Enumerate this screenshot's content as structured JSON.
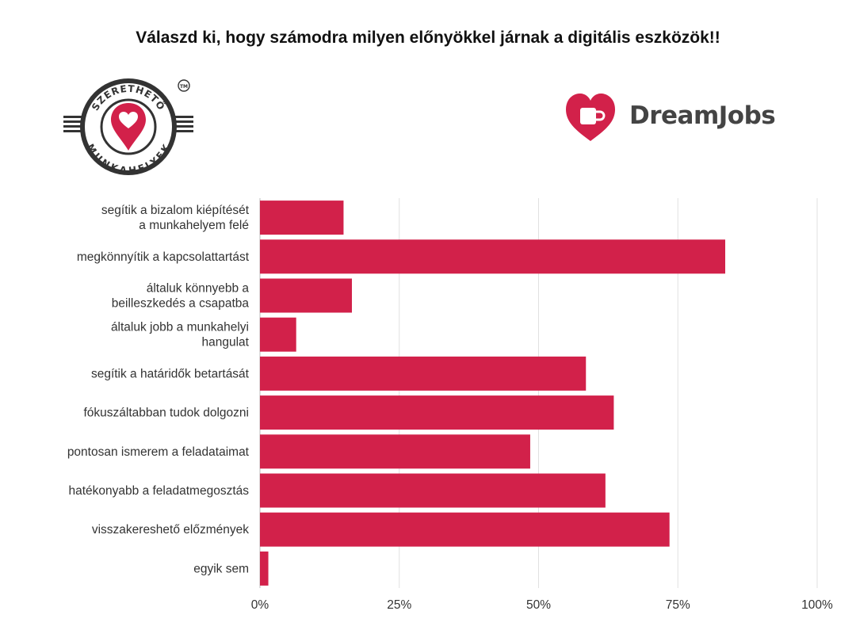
{
  "title": "Válaszd ki, hogy számodra milyen előnyökkel járnak a digitális eszközök!!",
  "logos": {
    "left": {
      "ring_text_top": "SZERETHETŐ",
      "ring_text_bottom": "MUNKAHELYEK",
      "mark": "TM"
    },
    "right": {
      "text_main": "DreamJobs"
    }
  },
  "colors": {
    "bar": "#d2214a",
    "grid": "#e0e0e0",
    "axis": "#bdbdbd",
    "logo_dark": "#333333"
  },
  "chart_data": {
    "type": "bar",
    "orientation": "horizontal",
    "categories": [
      [
        "segítik a bizalom kiépítését",
        "a munkahelyem felé"
      ],
      [
        "megkönnyítik a kapcsolattartást"
      ],
      [
        "általuk könnyebb a",
        "beilleszkedés a csapatba"
      ],
      [
        "általuk jobb a munkahelyi",
        "hangulat"
      ],
      [
        "segítik a határidők betartását"
      ],
      [
        "fókuszáltabban tudok dolgozni"
      ],
      [
        "pontosan ismerem a feladataimat"
      ],
      [
        "hatékonyabb a feladatmegosztás"
      ],
      [
        "visszakereshető előzmények"
      ],
      [
        "egyik sem"
      ]
    ],
    "values": [
      15,
      83.5,
      16.5,
      6.5,
      58.5,
      63.5,
      48.5,
      62,
      73.5,
      1.5
    ],
    "xlim": [
      0,
      100
    ],
    "ticks": [
      0,
      25,
      50,
      75,
      100
    ],
    "tick_labels": [
      "0%",
      "25%",
      "50%",
      "75%",
      "100%"
    ],
    "grid": true,
    "xlabel": "",
    "ylabel": ""
  }
}
